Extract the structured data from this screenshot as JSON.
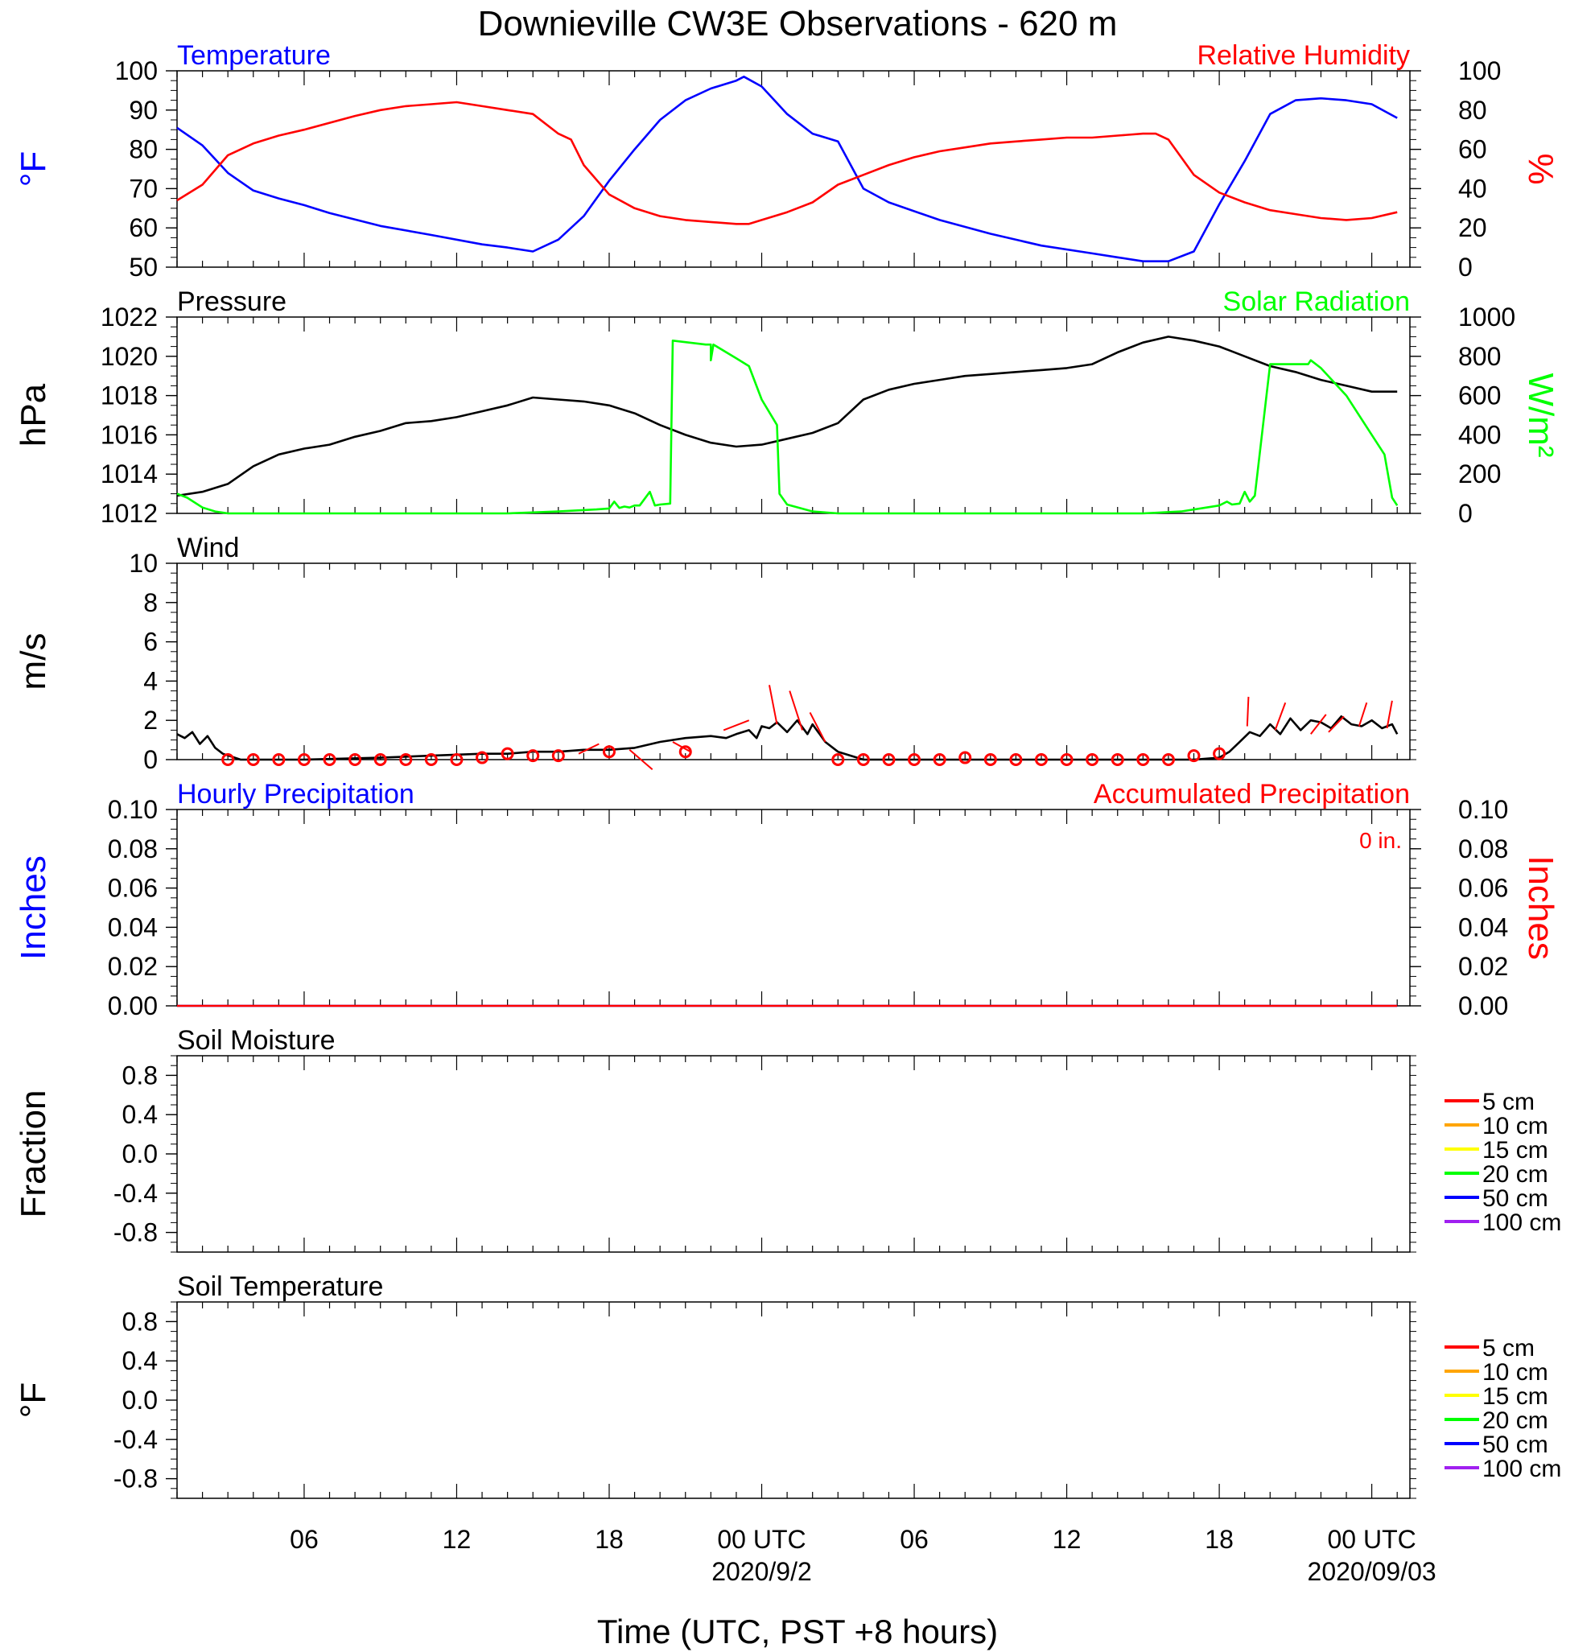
{
  "page": {
    "title": "Downieville CW3E Observations - 620 m",
    "xlabel": "Time (UTC, PST +8 hours)"
  },
  "colors": {
    "temperature": "#0000ff",
    "humidity": "#ff0000",
    "pressure": "#000000",
    "solar": "#00ff00",
    "wind": "#000000",
    "wind_marker": "#ff0000",
    "precip_hourly": "#0000ff",
    "precip_accum": "#ff0000"
  },
  "time_axis": {
    "range_hours": [
      0,
      48.5
    ],
    "ticks": [
      {
        "hour": 5,
        "label": "06",
        "sublabel": ""
      },
      {
        "hour": 11,
        "label": "12",
        "sublabel": ""
      },
      {
        "hour": 17,
        "label": "18",
        "sublabel": ""
      },
      {
        "hour": 23,
        "label": "00 UTC",
        "sublabel": "2020/9/2"
      },
      {
        "hour": 29,
        "label": "06",
        "sublabel": ""
      },
      {
        "hour": 35,
        "label": "12",
        "sublabel": ""
      },
      {
        "hour": 41,
        "label": "18",
        "sublabel": ""
      },
      {
        "hour": 47,
        "label": "00 UTC",
        "sublabel": "2020/09/03"
      }
    ]
  },
  "chart_data": [
    {
      "type": "line",
      "id": "temp_rh",
      "title_left": "Temperature",
      "title_right": "Relative Humidity",
      "ylabel_left": "°F",
      "ylabel_right": "%",
      "ylim_left": [
        50,
        100
      ],
      "ylim_right": [
        0,
        100
      ],
      "yticks_left": [
        50,
        60,
        70,
        80,
        90,
        100
      ],
      "yticks_right": [
        0,
        20,
        40,
        60,
        80,
        100
      ],
      "series": [
        {
          "name": "Temperature",
          "axis": "left",
          "color_key": "temperature",
          "x": [
            0,
            1,
            2,
            3,
            4,
            5,
            6,
            8,
            10,
            12,
            13,
            14,
            15,
            16,
            17,
            18,
            19,
            20,
            21,
            22,
            22.3,
            23,
            24,
            25,
            26,
            27,
            28,
            30,
            32,
            34,
            36,
            37,
            38,
            39,
            40,
            41,
            42,
            43,
            44,
            45,
            46,
            47,
            48
          ],
          "y": [
            85.5,
            81,
            74,
            69.5,
            67.5,
            65.8,
            63.8,
            60.5,
            58.2,
            55.8,
            55,
            54,
            57,
            63,
            72,
            80,
            87.5,
            92.5,
            95.5,
            97.5,
            98.5,
            96,
            89,
            84,
            82,
            70,
            66.5,
            62,
            58.5,
            55.5,
            53.5,
            52.5,
            51.5,
            51.5,
            54,
            66,
            77,
            89,
            92.5,
            93,
            92.5,
            91.5,
            88
          ]
        },
        {
          "name": "Relative Humidity",
          "axis": "right",
          "color_key": "humidity",
          "x": [
            0,
            1,
            2,
            3,
            4,
            5,
            7,
            8,
            9,
            10,
            11,
            12,
            13,
            14,
            15,
            15.5,
            16,
            17,
            18,
            19,
            20,
            21,
            22,
            22.5,
            23,
            24,
            25,
            26,
            27,
            28,
            29,
            30,
            31,
            32,
            33,
            34,
            35,
            36,
            37,
            38,
            38.5,
            39,
            40,
            41,
            42,
            43,
            44,
            45,
            46,
            47,
            48
          ],
          "y": [
            34,
            42,
            57,
            63,
            67,
            70,
            77,
            80,
            82,
            83,
            84,
            82,
            80,
            78,
            68,
            65,
            52,
            37,
            30,
            26,
            24,
            23,
            22,
            22,
            24,
            28,
            33,
            42,
            47,
            52,
            56,
            59,
            61,
            63,
            64,
            65,
            66,
            66,
            67,
            68,
            68,
            65,
            47,
            38,
            33,
            29,
            27,
            25,
            24,
            25,
            28
          ]
        }
      ]
    },
    {
      "type": "line",
      "id": "pressure_solar",
      "title_left": "Pressure",
      "title_right": "Solar Radiation",
      "ylabel_left": "hPa",
      "ylabel_right": "W/m²",
      "ylim_left": [
        1012,
        1022
      ],
      "ylim_right": [
        0,
        1000
      ],
      "yticks_left": [
        1012,
        1014,
        1016,
        1018,
        1020,
        1022
      ],
      "yticks_right": [
        0,
        200,
        400,
        600,
        800,
        1000
      ],
      "series": [
        {
          "name": "Pressure",
          "axis": "left",
          "color_key": "pressure",
          "x": [
            0,
            1,
            2,
            3,
            4,
            5,
            6,
            7,
            8,
            9,
            10,
            11,
            12,
            13,
            14,
            15,
            16,
            17,
            18,
            19,
            20,
            21,
            22,
            23,
            24,
            25,
            26,
            27,
            28,
            29,
            30,
            31,
            32,
            33,
            34,
            35,
            36,
            37,
            38,
            39,
            40,
            41,
            42,
            43,
            44,
            45,
            46,
            47,
            48
          ],
          "y": [
            1012.9,
            1013.1,
            1013.5,
            1014.4,
            1015,
            1015.3,
            1015.5,
            1015.9,
            1016.2,
            1016.6,
            1016.7,
            1016.9,
            1017.2,
            1017.5,
            1017.9,
            1017.8,
            1017.7,
            1017.5,
            1017.1,
            1016.5,
            1016.0,
            1015.6,
            1015.4,
            1015.5,
            1015.8,
            1016.1,
            1016.6,
            1017.8,
            1018.3,
            1018.6,
            1018.8,
            1019.0,
            1019.1,
            1019.2,
            1019.3,
            1019.4,
            1019.6,
            1020.2,
            1020.7,
            1021.0,
            1020.8,
            1020.5,
            1020.0,
            1019.5,
            1019.2,
            1018.8,
            1018.5,
            1018.2,
            1018.2
          ]
        },
        {
          "name": "Solar Radiation",
          "axis": "right",
          "color_key": "solar",
          "x": [
            0,
            0.4,
            1,
            1.5,
            2,
            5,
            10,
            13,
            15,
            16.5,
            17,
            17.2,
            17.4,
            17.6,
            17.8,
            18,
            18.2,
            18.6,
            18.8,
            19,
            19.4,
            19.5,
            20.8,
            21,
            21,
            21.1,
            22,
            22.5,
            23,
            23.6,
            23.7,
            24,
            25,
            26,
            30,
            36,
            38,
            39.5,
            40.5,
            41,
            41.3,
            41.5,
            41.8,
            42,
            42.2,
            42.4,
            43,
            44,
            44.5,
            44.6,
            45,
            46,
            47,
            47.5,
            47.8,
            48
          ],
          "y": [
            100,
            80,
            30,
            10,
            0,
            0,
            0,
            0,
            10,
            20,
            25,
            60,
            28,
            35,
            30,
            40,
            40,
            110,
            40,
            45,
            50,
            880,
            860,
            860,
            780,
            860,
            790,
            750,
            580,
            450,
            100,
            45,
            10,
            0,
            0,
            0,
            0,
            10,
            30,
            40,
            60,
            45,
            50,
            110,
            60,
            90,
            760,
            760,
            760,
            780,
            740,
            600,
            400,
            300,
            80,
            40
          ]
        }
      ]
    },
    {
      "type": "line",
      "id": "wind",
      "title_left": "Wind",
      "ylabel_left": "m/s",
      "ylim_left": [
        0,
        10
      ],
      "yticks_left": [
        0,
        2,
        4,
        6,
        8,
        10
      ],
      "series": [
        {
          "name": "Wind",
          "axis": "left",
          "color_key": "wind",
          "x": [
            0,
            0.3,
            0.6,
            0.9,
            1.2,
            1.5,
            1.8,
            2.5,
            5,
            8,
            10,
            12,
            13,
            14,
            15,
            16,
            17,
            18,
            19,
            20,
            21,
            21.6,
            22,
            22.5,
            22.8,
            23,
            23.3,
            23.6,
            24,
            24.4,
            24.8,
            25,
            25.5,
            26,
            27,
            30,
            35,
            38,
            40,
            41,
            41.4,
            41.8,
            42.2,
            42.6,
            43,
            43.4,
            43.8,
            44.2,
            44.6,
            45,
            45.4,
            45.8,
            46.2,
            46.6,
            47,
            47.4,
            47.8,
            48
          ],
          "y": [
            1.3,
            1.1,
            1.4,
            0.8,
            1.2,
            0.6,
            0.3,
            0,
            0,
            0.1,
            0.2,
            0.3,
            0.3,
            0.4,
            0.4,
            0.5,
            0.5,
            0.6,
            0.9,
            1.1,
            1.2,
            1.1,
            1.3,
            1.5,
            1.1,
            1.7,
            1.6,
            1.9,
            1.4,
            2.0,
            1.3,
            1.8,
            0.9,
            0.4,
            0,
            0,
            0,
            0,
            0,
            0.1,
            0.4,
            0.9,
            1.4,
            1.2,
            1.8,
            1.3,
            2.1,
            1.5,
            2.0,
            1.9,
            1.6,
            2.2,
            1.8,
            1.7,
            2.0,
            1.6,
            1.8,
            1.3
          ]
        }
      ],
      "markers": {
        "name": "Hourly wind",
        "x": [
          2,
          3,
          4,
          5,
          6,
          7,
          8,
          9,
          10,
          11,
          12,
          13,
          14,
          15,
          17,
          20,
          26,
          27,
          28,
          29,
          30,
          31,
          32,
          33,
          34,
          35,
          36,
          37,
          38,
          39,
          40,
          41
        ],
        "y": [
          0,
          0,
          0,
          0,
          0,
          0,
          0,
          0,
          0,
          0,
          0.1,
          0.3,
          0.2,
          0.2,
          0.4,
          0.4,
          0,
          0,
          0,
          0,
          0,
          0.1,
          0,
          0,
          0,
          0,
          0,
          0,
          0,
          0,
          0.2,
          0.3
        ]
      },
      "barbs": {
        "x": [
          15.8,
          17.8,
          19.5,
          22.5,
          23.6,
          24.6,
          25.5,
          42.1,
          43.2,
          44.6,
          45.3,
          46.5,
          47.6
        ],
        "y": [
          0.3,
          0.5,
          0.9,
          2.0,
          1.8,
          1.5,
          0.9,
          1.7,
          1.5,
          1.3,
          1.4,
          1.7,
          1.6
        ],
        "dx": [
          0.8,
          0.9,
          0.7,
          -1.0,
          -0.3,
          -0.5,
          -0.6,
          0.05,
          0.4,
          0.6,
          0.6,
          0.3,
          0.2
        ],
        "dy": [
          0.5,
          -1.0,
          -0.5,
          -0.5,
          2.0,
          2.0,
          1.5,
          1.5,
          1.4,
          1.0,
          0.8,
          1.2,
          1.4
        ]
      }
    },
    {
      "type": "line",
      "id": "precip",
      "title_left": "Hourly Precipitation",
      "title_right": "Accumulated Precipitation",
      "annotation": "0 in.",
      "ylabel_left": "Inches",
      "ylabel_right": "Inches",
      "ylim_left": [
        0,
        0.1
      ],
      "ylim_right": [
        0,
        0.1
      ],
      "yticks_left": [
        "0.00",
        "0.02",
        "0.04",
        "0.06",
        "0.08",
        "0.10"
      ],
      "yticks_right": [
        "0.00",
        "0.02",
        "0.04",
        "0.06",
        "0.08",
        "0.10"
      ],
      "series": [
        {
          "name": "Hourly Precipitation",
          "axis": "left",
          "color_key": "precip_hourly",
          "x": [
            0,
            48
          ],
          "y": [
            0,
            0
          ]
        },
        {
          "name": "Accumulated Precipitation",
          "axis": "right",
          "color_key": "precip_accum",
          "x": [
            0,
            48
          ],
          "y": [
            0,
            0
          ]
        }
      ]
    },
    {
      "type": "line",
      "id": "soil_moisture",
      "title_left": "Soil Moisture",
      "ylabel_left": "Fraction",
      "ylim_left": [
        -1,
        1
      ],
      "yticks_left": [
        "-0.8",
        "-0.4",
        "0.0",
        "0.4",
        "0.8"
      ],
      "legend": [
        {
          "label": "5 cm",
          "color": "#ff0000"
        },
        {
          "label": "10 cm",
          "color": "#ffa500"
        },
        {
          "label": "15 cm",
          "color": "#ffff00"
        },
        {
          "label": "20 cm",
          "color": "#00ff00"
        },
        {
          "label": "50 cm",
          "color": "#0000ff"
        },
        {
          "label": "100 cm",
          "color": "#a020f0"
        }
      ],
      "series": []
    },
    {
      "type": "line",
      "id": "soil_temp",
      "title_left": "Soil Temperature",
      "ylabel_left": "°F",
      "ylim_left": [
        -1,
        1
      ],
      "yticks_left": [
        "-0.8",
        "-0.4",
        "0.0",
        "0.4",
        "0.8"
      ],
      "legend": [
        {
          "label": "5 cm",
          "color": "#ff0000"
        },
        {
          "label": "10 cm",
          "color": "#ffa500"
        },
        {
          "label": "15 cm",
          "color": "#ffff00"
        },
        {
          "label": "20 cm",
          "color": "#00ff00"
        },
        {
          "label": "50 cm",
          "color": "#0000ff"
        },
        {
          "label": "100 cm",
          "color": "#a020f0"
        }
      ],
      "series": []
    }
  ]
}
